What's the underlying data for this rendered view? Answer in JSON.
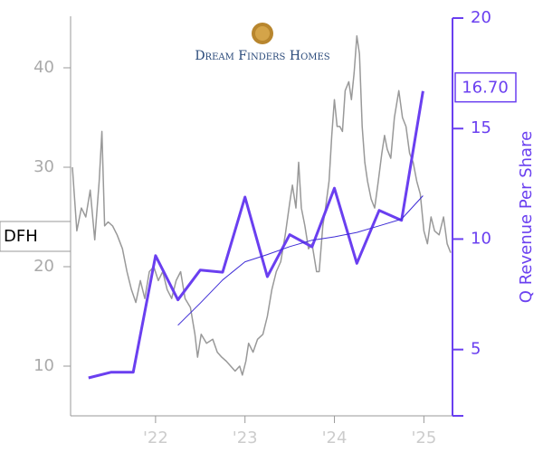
{
  "chart_data": {
    "type": "line",
    "logo_text": "Dream Finders Homes",
    "y2_label": "Q Revenue Per Share",
    "xlim": [
      2021.05,
      2025.32
    ],
    "xticks": [
      {
        "value": 2022,
        "label": "'22"
      },
      {
        "value": 2023,
        "label": "'23"
      },
      {
        "value": 2024,
        "label": "'24"
      },
      {
        "value": 2025,
        "label": "'25"
      }
    ],
    "ylim": [
      5,
      45
    ],
    "yticks": [
      10,
      20,
      30,
      40
    ],
    "y2lim": [
      2,
      20
    ],
    "y2ticks": [
      5,
      10,
      15,
      20
    ],
    "grid": false,
    "series": [
      {
        "name": "DFH",
        "color": "#999999",
        "axis": "y",
        "x": [
          2021.07,
          2021.12,
          2021.17,
          2021.22,
          2021.27,
          2021.32,
          2021.37,
          2021.4,
          2021.43,
          2021.47,
          2021.52,
          2021.57,
          2021.63,
          2021.68,
          2021.73,
          2021.78,
          2021.83,
          2021.88,
          2021.93,
          2021.98,
          2022.03,
          2022.08,
          2022.13,
          2022.18,
          2022.23,
          2022.28,
          2022.33,
          2022.39,
          2022.44,
          2022.47,
          2022.51,
          2022.57,
          2022.64,
          2022.69,
          2022.74,
          2022.79,
          2022.84,
          2022.89,
          2022.94,
          2022.97,
          2023.01,
          2023.04,
          2023.09,
          2023.14,
          2023.2,
          2023.25,
          2023.3,
          2023.35,
          2023.4,
          2023.45,
          2023.5,
          2023.53,
          2023.57,
          2023.6,
          2023.63,
          2023.67,
          2023.71,
          2023.75,
          2023.8,
          2023.83,
          2023.87,
          2023.9,
          2023.94,
          2023.97,
          2024.0,
          2024.03,
          2024.06,
          2024.09,
          2024.12,
          2024.16,
          2024.19,
          2024.22,
          2024.25,
          2024.28,
          2024.31,
          2024.34,
          2024.37,
          2024.41,
          2024.45,
          2024.49,
          2024.53,
          2024.56,
          2024.59,
          2024.63,
          2024.67,
          2024.72,
          2024.76,
          2024.8,
          2024.84,
          2024.88,
          2024.92,
          2024.96,
          2025.0,
          2025.04,
          2025.08,
          2025.12,
          2025.17,
          2025.22,
          2025.26,
          2025.3
        ],
        "values": [
          30,
          23.6,
          25.9,
          25,
          27.7,
          22.7,
          28.6,
          33.6,
          24.1,
          24.5,
          24.1,
          23.2,
          21.8,
          19.5,
          17.7,
          16.4,
          18.6,
          16.8,
          19.5,
          20,
          18.6,
          19.5,
          17.7,
          16.8,
          18.6,
          19.5,
          16.8,
          15.9,
          13.2,
          10.9,
          13.2,
          12.3,
          12.7,
          11.4,
          10.9,
          10.5,
          10,
          9.5,
          10,
          9.1,
          10.5,
          12.3,
          11.4,
          12.7,
          13.2,
          15,
          17.7,
          19.5,
          20.5,
          23.2,
          26.4,
          28.2,
          25.9,
          30.5,
          25.9,
          24.1,
          21.8,
          22.3,
          19.5,
          19.5,
          24.1,
          25.9,
          28.6,
          33.2,
          36.8,
          34.1,
          34.1,
          33.6,
          37.7,
          38.6,
          36.8,
          39.5,
          43.2,
          41.4,
          34.1,
          30.5,
          28.6,
          26.8,
          25.9,
          28.6,
          31.4,
          33.2,
          31.8,
          30.9,
          35,
          37.7,
          35,
          34.1,
          31.4,
          30.5,
          28.6,
          27.3,
          23.6,
          22.3,
          25,
          23.6,
          23.2,
          25,
          22.3,
          21.4
        ]
      },
      {
        "color": "#6a3ff0",
        "axis": "y2",
        "x": [
          2021.25,
          2021.5,
          2021.75,
          2022.0,
          2022.25,
          2022.5,
          2022.75,
          2023.0,
          2023.25,
          2023.5,
          2023.75,
          2024.0,
          2024.25,
          2024.5,
          2024.75,
          2024.99
        ],
        "values": [
          3.72,
          3.97,
          3.97,
          9.25,
          7.25,
          8.6,
          8.5,
          11.9,
          8.3,
          10.2,
          9.65,
          12.3,
          8.9,
          11.3,
          10.85,
          16.7
        ],
        "value_labels": [
          null,
          null,
          null,
          null,
          null,
          null,
          null,
          null,
          null,
          null,
          null,
          null,
          null,
          null,
          null,
          "16.70"
        ]
      },
      {
        "color": "#3d2bd6",
        "axis": "y2",
        "x": [
          2022.25,
          2022.5,
          2022.75,
          2023.0,
          2023.25,
          2023.5,
          2023.75,
          2024.0,
          2024.25,
          2024.5,
          2024.75,
          2024.99
        ],
        "values": [
          6.1,
          7.1,
          8.15,
          8.97,
          9.3,
          9.66,
          9.95,
          10.1,
          10.3,
          10.6,
          10.9,
          11.96
        ]
      }
    ]
  }
}
